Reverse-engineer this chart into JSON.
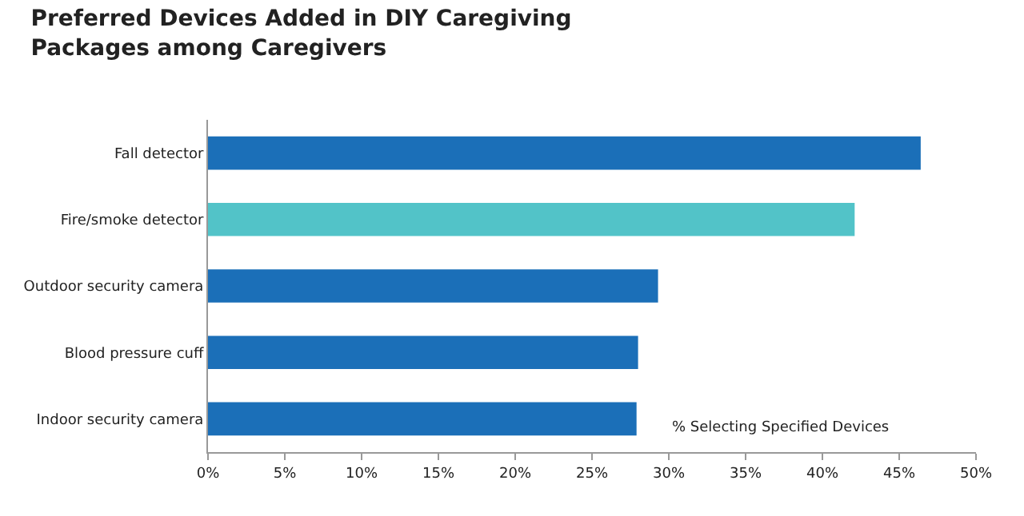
{
  "chart_data": {
    "type": "bar",
    "orientation": "horizontal",
    "title": "Preferred Devices Added in DIY Caregiving Packages among Caregivers",
    "categories": [
      "Fall detector",
      "Fire/smoke detector",
      "Outdoor security camera",
      "Blood pressure cuff",
      "Indoor security camera"
    ],
    "values": [
      46.4,
      42.1,
      29.3,
      28.0,
      27.9
    ],
    "colors": [
      "#1b6fb8",
      "#52c3c8",
      "#1b6fb8",
      "#1b6fb8",
      "#1b6fb8"
    ],
    "xlim": [
      0,
      50
    ],
    "xticks": [
      {
        "value": 0,
        "label": "0%"
      },
      {
        "value": 5,
        "label": "5%"
      },
      {
        "value": 10,
        "label": "10%"
      },
      {
        "value": 15,
        "label": "15%"
      },
      {
        "value": 20,
        "label": "20%"
      },
      {
        "value": 25,
        "label": "25%"
      },
      {
        "value": 30,
        "label": "30%"
      },
      {
        "value": 35,
        "label": "35%"
      },
      {
        "value": 40,
        "label": "40%"
      },
      {
        "value": 45,
        "label": "45%"
      },
      {
        "value": 50,
        "label": "50%"
      }
    ],
    "annotations": [
      "% Selecting Specified Devices"
    ]
  }
}
